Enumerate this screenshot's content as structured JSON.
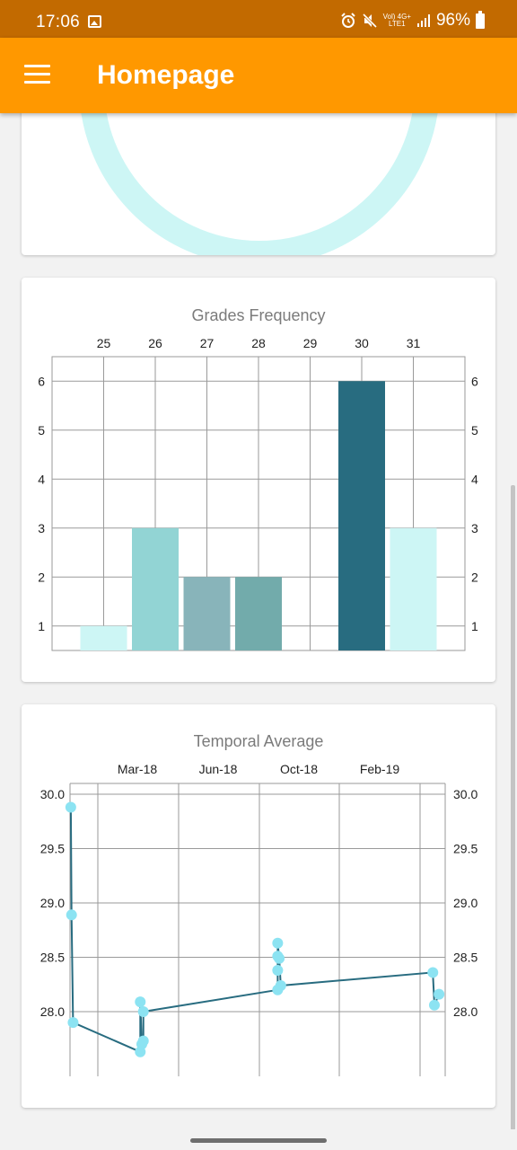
{
  "status_bar": {
    "time": "17:06",
    "network_top": "Vol) 4G+",
    "network_bottom": "LTE1",
    "battery": "96%",
    "icons": [
      "photo-icon",
      "alarm-icon",
      "mute-icon",
      "signal-icon",
      "battery-icon"
    ]
  },
  "app_bar": {
    "title": "Homepage",
    "background": "#ff9800",
    "status_background": "#c26a00"
  },
  "donut": {
    "ring_color": "#cdf6f5"
  },
  "grades_chart": {
    "title": "Grades Frequency"
  },
  "temporal_chart": {
    "title": "Temporal Average"
  },
  "chart_data": [
    {
      "type": "bar",
      "title": "Grades Frequency",
      "categories": [
        "25",
        "26",
        "27",
        "28",
        "29",
        "30",
        "31"
      ],
      "values": [
        1,
        3,
        2,
        2,
        0,
        6,
        3
      ],
      "colors": [
        "#cdf6f5",
        "#92d4d4",
        "#88b4ba",
        "#72abab",
        "#ffffff",
        "#286c80",
        "#cdf6f5"
      ],
      "xaxis_position": "top",
      "yaxis": "both sides",
      "yticks": [
        "1",
        "2",
        "3",
        "4",
        "5",
        "6"
      ],
      "ylim": [
        0.5,
        6.5
      ],
      "grid": true
    },
    {
      "type": "line",
      "title": "Temporal Average",
      "xaxis_position": "top",
      "xticks": [
        "Mar-18",
        "Jun-18",
        "Oct-18",
        "Feb-19"
      ],
      "yticks": [
        "28.0",
        "28.5",
        "29.0",
        "29.5",
        "30.0"
      ],
      "ylim": [
        27.5,
        30.0
      ],
      "xlim": [
        "2018-01-19",
        "2019-05-20"
      ],
      "yaxis": "both sides",
      "grid": true,
      "line_color": "#286c80",
      "marker_color": "#8ce3f2",
      "series": [
        {
          "points": [
            {
              "x": "2018-01-20",
              "y": 29.88
            },
            {
              "x": "2018-01-21",
              "y": 28.89
            },
            {
              "x": "2018-01-23",
              "y": 27.9
            },
            {
              "x": "2018-04-20",
              "y": 27.63
            },
            {
              "x": "2018-04-20",
              "y": 28.09
            },
            {
              "x": "2018-04-22",
              "y": 27.7
            },
            {
              "x": "2018-04-24",
              "y": 27.73
            },
            {
              "x": "2018-04-24",
              "y": 28.0
            },
            {
              "x": "2018-10-15",
              "y": 28.2
            },
            {
              "x": "2018-10-15",
              "y": 28.38
            },
            {
              "x": "2018-10-15",
              "y": 28.51
            },
            {
              "x": "2018-10-15",
              "y": 28.63
            },
            {
              "x": "2018-10-17",
              "y": 28.49
            },
            {
              "x": "2018-10-19",
              "y": 28.24
            },
            {
              "x": "2019-05-04",
              "y": 28.36
            },
            {
              "x": "2019-05-06",
              "y": 28.06
            },
            {
              "x": "2019-05-12",
              "y": 28.16
            }
          ]
        }
      ]
    }
  ]
}
